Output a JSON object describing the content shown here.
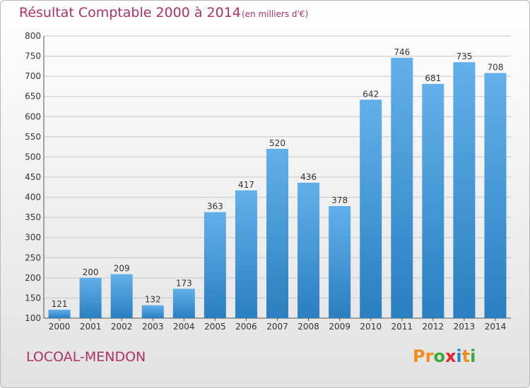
{
  "header": {
    "title": "Résultat Comptable 2000 à 2014",
    "unit": "(en milliers d'€)"
  },
  "footer": {
    "commune": "LOCOAL-MENDON",
    "logo_text": "Proxiti",
    "logo_colors": [
      "#f28c1e",
      "#f28c1e",
      "#3aa935",
      "#e3262e",
      "#1e88c8",
      "#f28c1e",
      "#3aa935"
    ]
  },
  "colors": {
    "title": "#b0306a",
    "bar_light": "#62b0eb",
    "bar_dark": "#2a7fc0",
    "grid": "#c8c8c8"
  },
  "chart_data": {
    "type": "bar",
    "title": "Résultat Comptable 2000 à 2014",
    "categories": [
      "2000",
      "2001",
      "2002",
      "2003",
      "2004",
      "2005",
      "2006",
      "2007",
      "2008",
      "2009",
      "2010",
      "2011",
      "2012",
      "2013",
      "2014"
    ],
    "values": [
      121,
      200,
      209,
      132,
      173,
      363,
      417,
      520,
      436,
      378,
      642,
      746,
      681,
      735,
      708
    ],
    "ylim": [
      100,
      800
    ],
    "yticks": [
      100,
      150,
      200,
      250,
      300,
      350,
      400,
      450,
      500,
      550,
      600,
      650,
      700,
      750,
      800
    ],
    "grid": true,
    "data_labels": true
  }
}
